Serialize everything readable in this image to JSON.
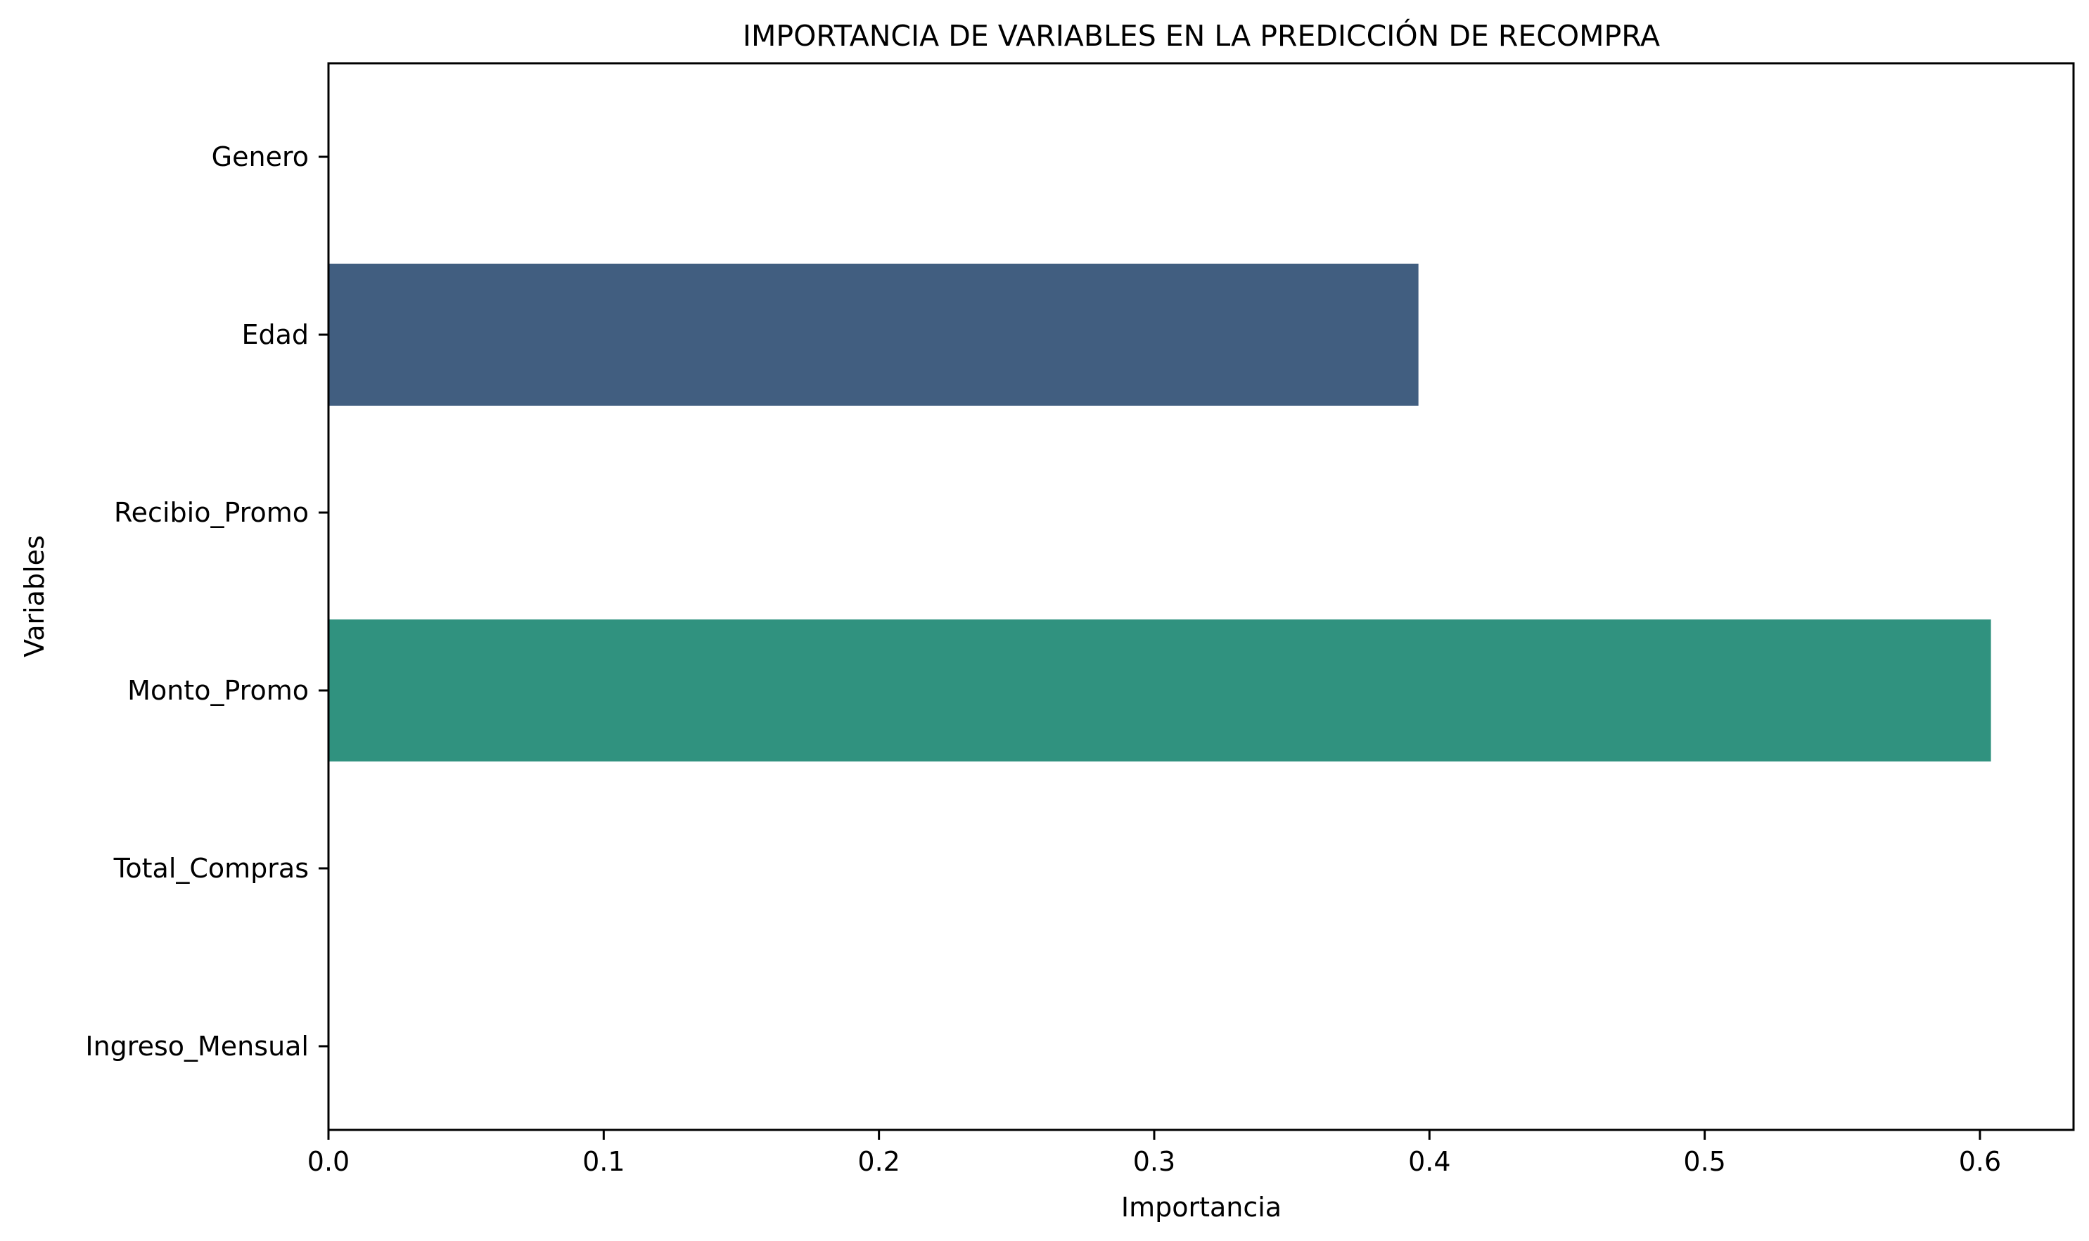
{
  "chart_data": {
    "type": "bar",
    "orientation": "horizontal",
    "title": "IMPORTANCIA DE VARIABLES EN LA PREDICCIÓN DE RECOMPRA",
    "xlabel": "Importancia",
    "ylabel": "Variables",
    "categories": [
      "Genero",
      "Edad",
      "Recibio_Promo",
      "Monto_Promo",
      "Total_Compras",
      "Ingreso_Mensual"
    ],
    "values": [
      0.0,
      0.396,
      0.0,
      0.604,
      0.0,
      0.0
    ],
    "colors": [
      "#482677",
      "#415e80",
      "#2f6f8e",
      "#30927f",
      "#5ec962",
      "#b8de29"
    ],
    "xlim": [
      0.0,
      0.634
    ],
    "xticks": [
      "0.0",
      "0.1",
      "0.2",
      "0.3",
      "0.4",
      "0.5",
      "0.6"
    ],
    "grid": false,
    "legend": "none"
  }
}
